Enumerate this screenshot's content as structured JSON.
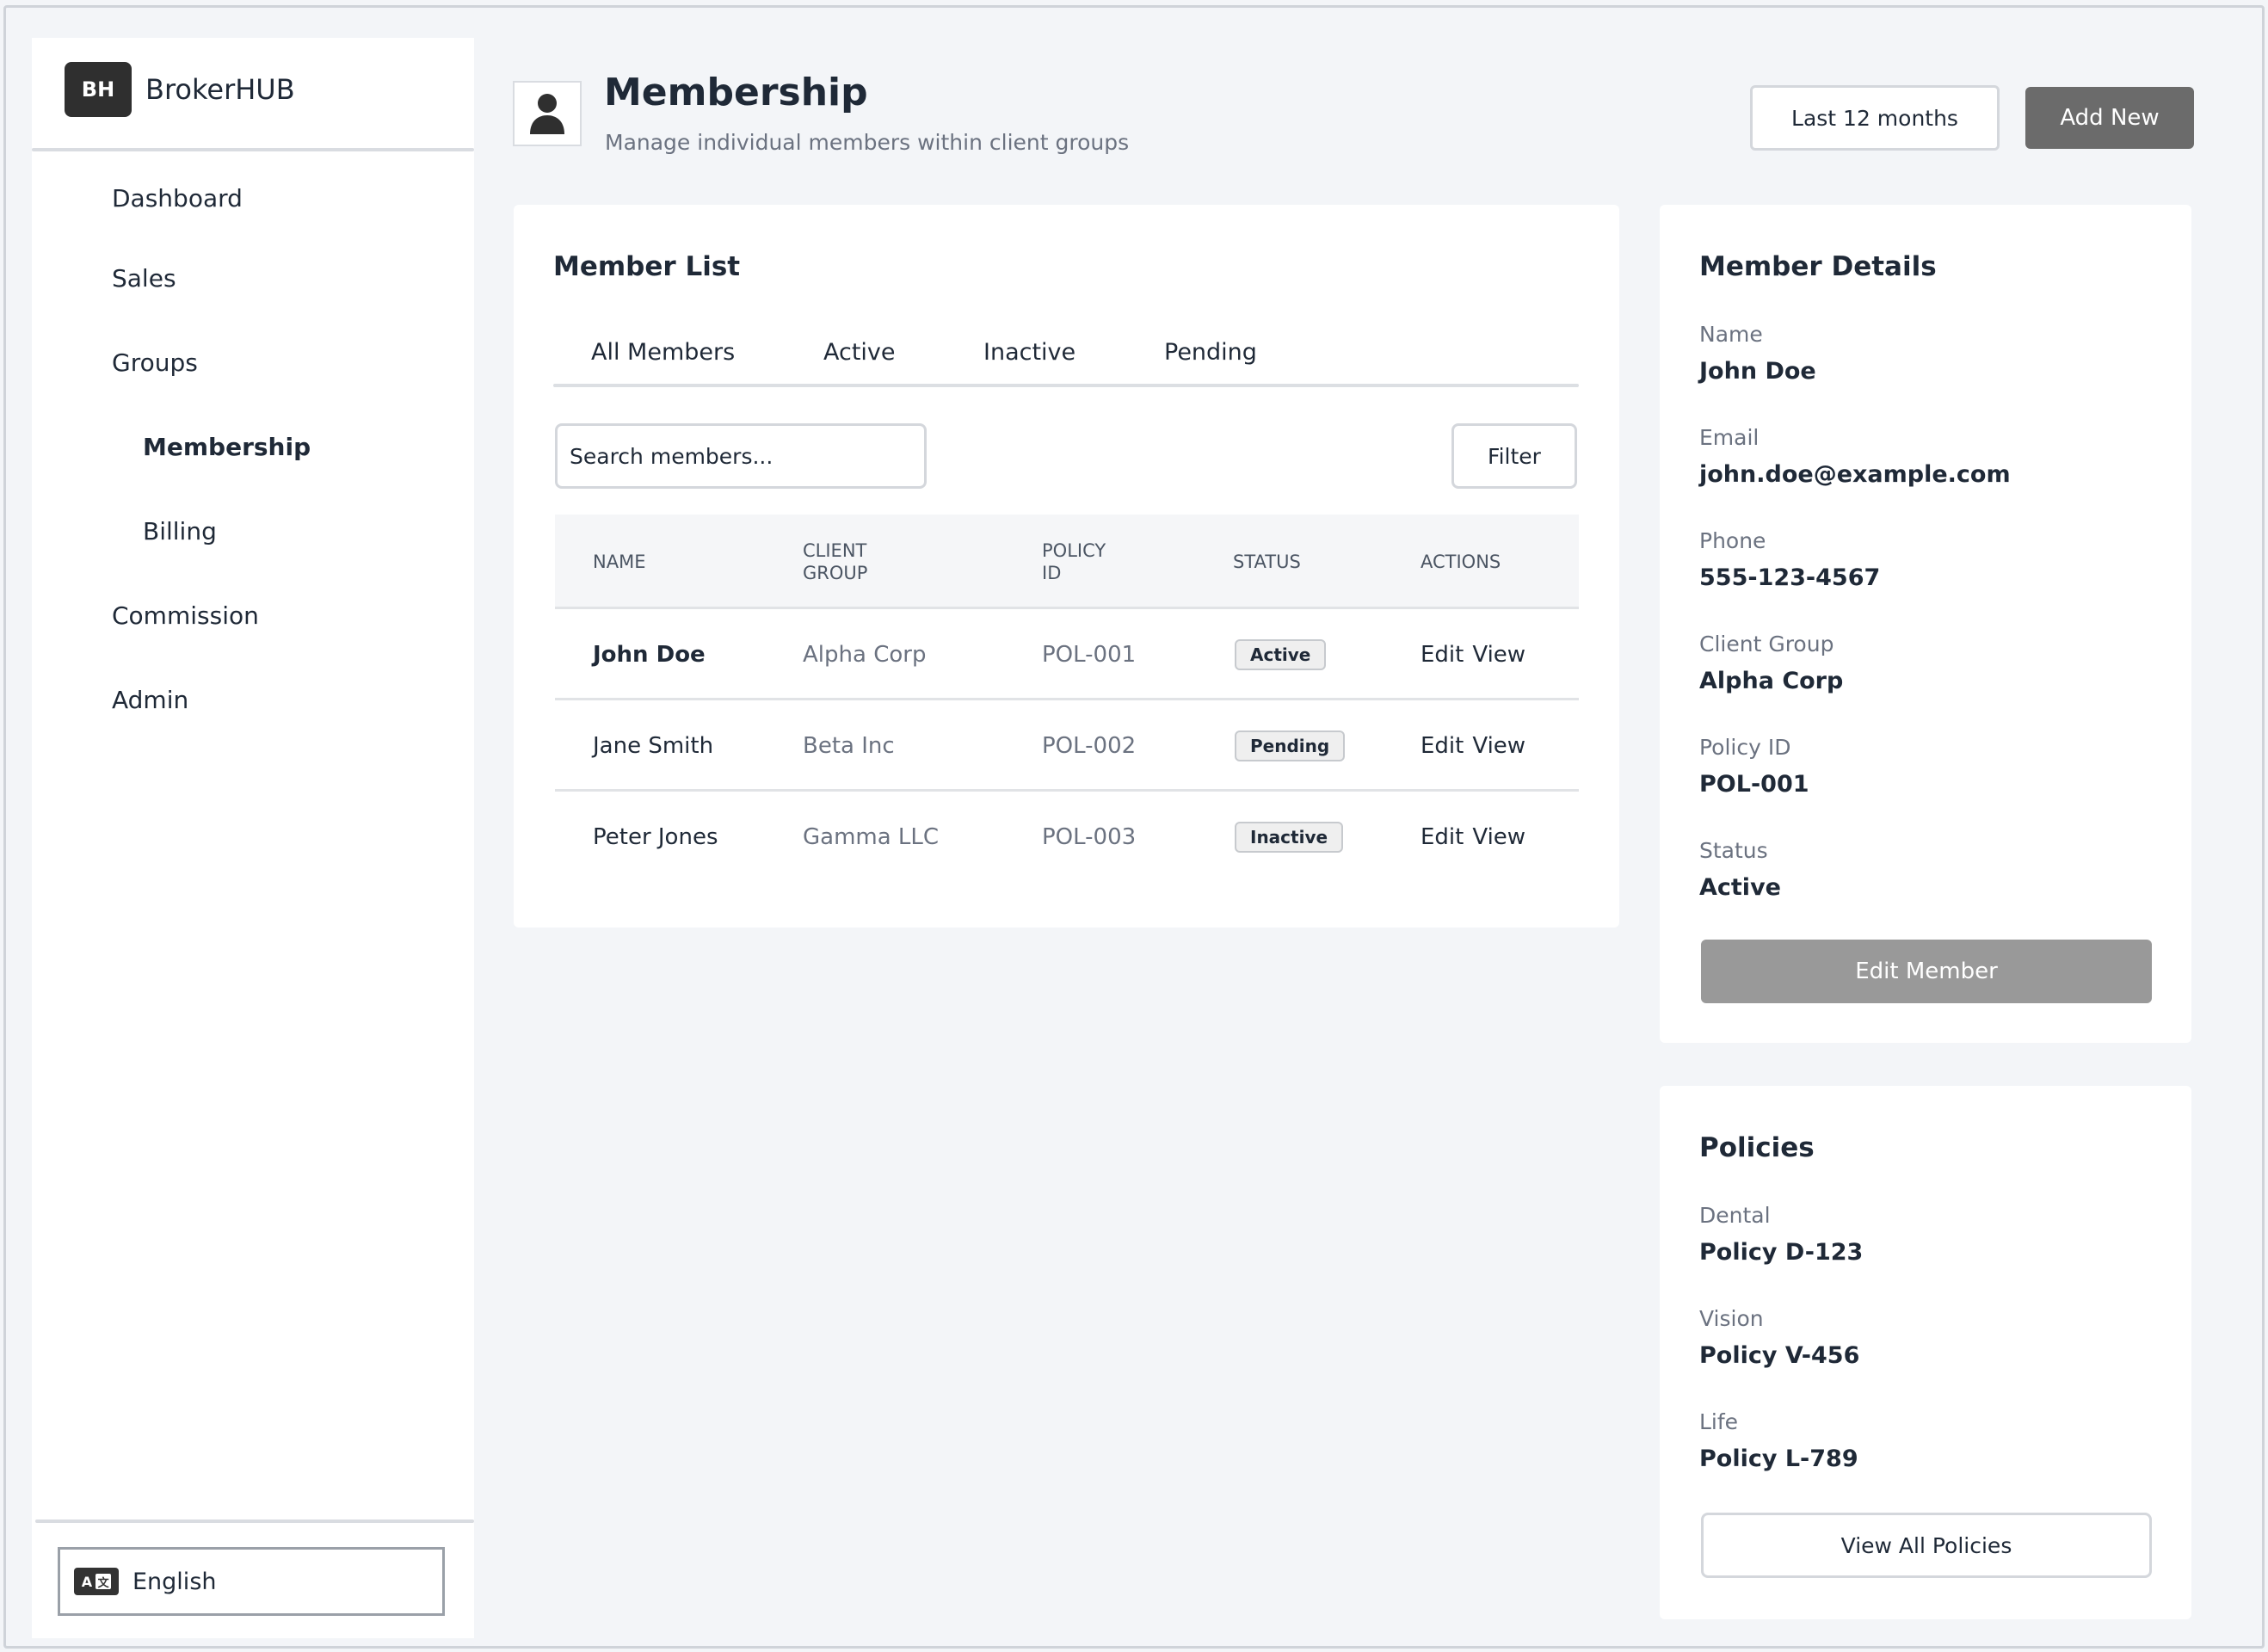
{
  "app": {
    "logo_text": "BH",
    "name": "BrokerHUB"
  },
  "sidebar": {
    "items": [
      {
        "label": "Dashboard"
      },
      {
        "label": "Sales"
      },
      {
        "label": "Groups"
      },
      {
        "label": "Membership"
      },
      {
        "label": "Billing"
      },
      {
        "label": "Commission"
      },
      {
        "label": "Admin"
      }
    ],
    "language": {
      "label": "English",
      "icon": "translate-icon"
    }
  },
  "header": {
    "icon": "user-icon",
    "title": "Membership",
    "subtitle": "Manage individual members within client groups",
    "range_button": "Last 12 months",
    "add_button": "Add New"
  },
  "member_list": {
    "title": "Member List",
    "tabs": [
      "All Members",
      "Active",
      "Inactive",
      "Pending"
    ],
    "search_placeholder": "Search members...",
    "filter_button": "Filter",
    "columns": {
      "name": "NAME",
      "client_group_1": "CLIENT",
      "client_group_2": "GROUP",
      "policy_id_1": "POLICY",
      "policy_id_2": "ID",
      "status": "STATUS",
      "actions": "ACTIONS"
    },
    "rows": [
      {
        "name": "John Doe",
        "client_group": "Alpha Corp",
        "policy_id": "POL-001",
        "status": "Active",
        "edit": "Edit",
        "view": "View"
      },
      {
        "name": "Jane Smith",
        "client_group": "Beta Inc",
        "policy_id": "POL-002",
        "status": "Pending",
        "edit": "Edit",
        "view": "View"
      },
      {
        "name": "Peter Jones",
        "client_group": "Gamma LLC",
        "policy_id": "POL-003",
        "status": "Inactive",
        "edit": "Edit",
        "view": "View"
      }
    ]
  },
  "member_details": {
    "title": "Member Details",
    "fields": [
      {
        "label": "Name",
        "value": "John Doe"
      },
      {
        "label": "Email",
        "value": "john.doe@example.com"
      },
      {
        "label": "Phone",
        "value": "555-123-4567"
      },
      {
        "label": "Client Group",
        "value": "Alpha Corp"
      },
      {
        "label": "Policy ID",
        "value": "POL-001"
      },
      {
        "label": "Status",
        "value": "Active"
      }
    ],
    "edit_button": "Edit Member"
  },
  "policies": {
    "title": "Policies",
    "items": [
      {
        "label": "Dental",
        "value": "Policy D-123"
      },
      {
        "label": "Vision",
        "value": "Policy V-456"
      },
      {
        "label": "Life",
        "value": "Policy L-789"
      }
    ],
    "view_all_button": "View All Policies"
  }
}
